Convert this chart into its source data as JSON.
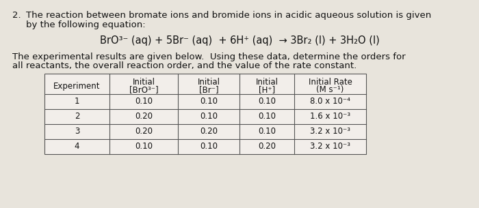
{
  "title_num": "2.",
  "title_line1": "The reaction between bromate ions and bromide ions in acidic aqueous solution is given",
  "title_line2": "by the following equation:",
  "equation": "BrO³⁻ (aq) + 5Br⁻ (aq)  + 6H⁺ (aq)  → 3Br₂ (l) + 3H₂O (l)",
  "body_line1": "The experimental results are given below.  Using these data, determine the orders for",
  "body_line2": "all reactants, the overall reaction order, and the value of the rate constant.",
  "col_headers": [
    "Experiment",
    "Initial\n[BrO³⁻]",
    "Initial\n[Br⁻]",
    "Initial\n[H⁺]",
    "Initial Rate\n(M s⁻¹)"
  ],
  "table_data": [
    [
      "1",
      "0.10",
      "0.10",
      "0.10",
      "8.0 x 10⁻⁴"
    ],
    [
      "2",
      "0.20",
      "0.10",
      "0.10",
      "1.6 x 10⁻³"
    ],
    [
      "3",
      "0.20",
      "0.20",
      "0.10",
      "3.2 x 10⁻³"
    ],
    [
      "4",
      "0.10",
      "0.10",
      "0.20",
      "3.2 x 10⁻³"
    ]
  ],
  "bg_color": "#e8e4dc",
  "text_color": "#111111",
  "table_bg": "#f2eeea",
  "font_size": 9.5,
  "eq_font_size": 10.5
}
